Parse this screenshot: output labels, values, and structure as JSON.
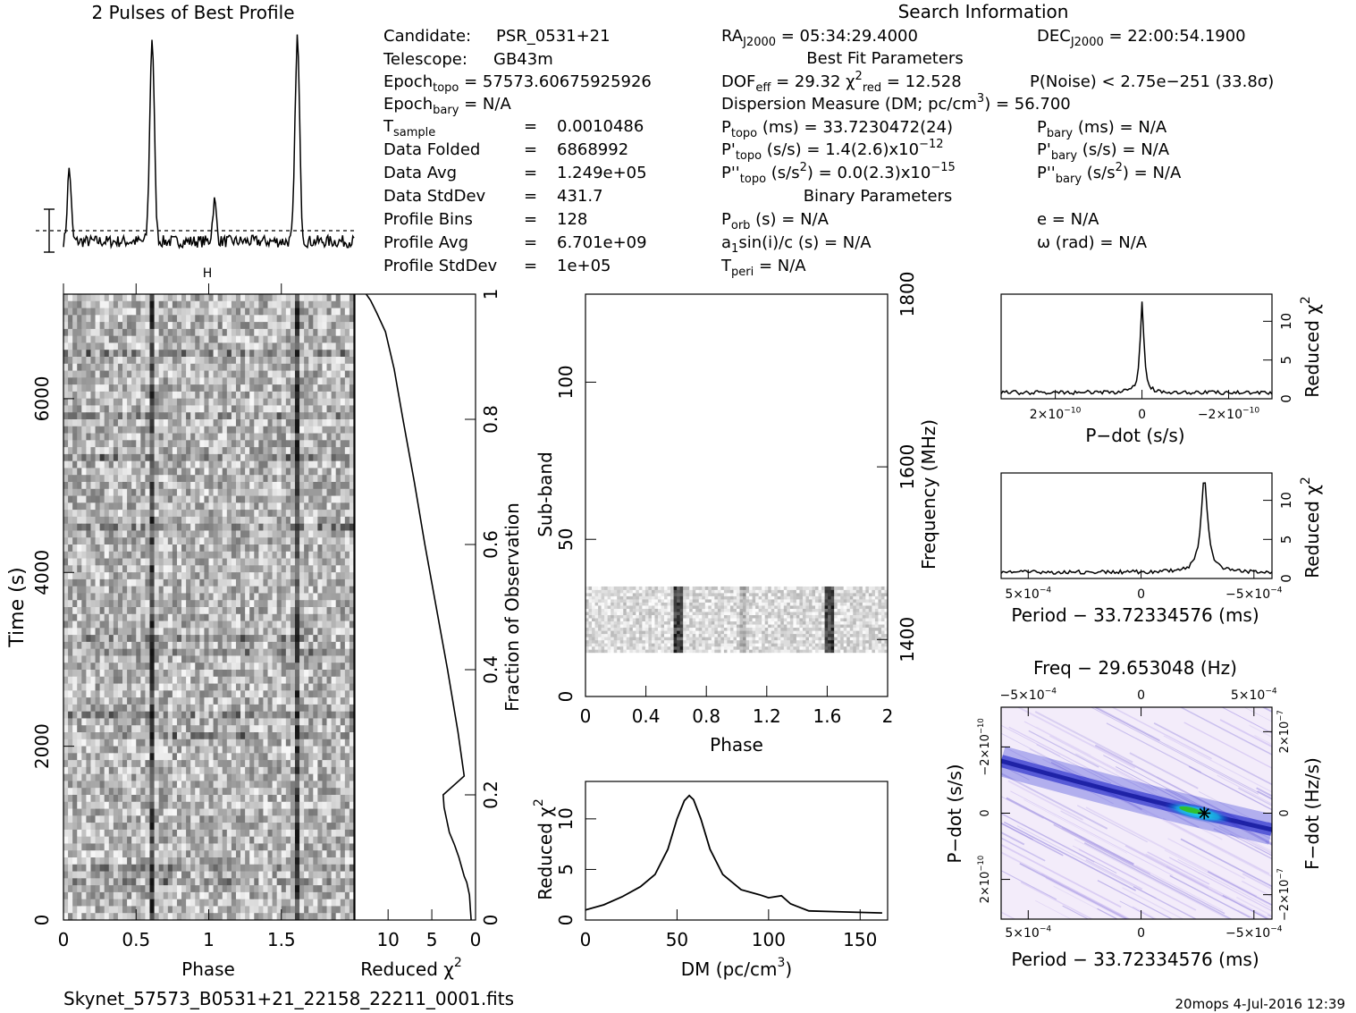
{
  "footer": {
    "filename": "Skynet_57573_B0531+21_22158_22211_0001.fits",
    "credit": "20mops",
    "timestamp": "4-Jul-2016 12:39"
  },
  "profile": {
    "title": "2 Pulses of Best Profile"
  },
  "search_info": {
    "header": "Search Information",
    "best_fit_header": "Best Fit Parameters",
    "binary_header": "Binary Parameters",
    "candidate_label": "Candidate:",
    "candidate": "PSR_0531+21",
    "telescope_label": "Telescope:",
    "telescope": "GB43m",
    "epoch_topo": "57573.60675925926",
    "epoch_bary": "N/A",
    "t_sample": "0.0010486",
    "data_folded_label": "Data Folded",
    "data_folded": "6868992",
    "data_avg_label": "Data Avg",
    "data_avg": "1.249e+05",
    "data_stddev_label": "Data StdDev",
    "data_stddev": "431.7",
    "profile_bins_label": "Profile Bins",
    "profile_bins": "128",
    "profile_avg_label": "Profile Avg",
    "profile_avg": "6.701e+09",
    "profile_stddev_label": "Profile StdDev",
    "profile_stddev": "1e+05",
    "ra": "05:34:29.4000",
    "dec": "22:00:54.1900",
    "dof_eff": "29.32",
    "chi2_red": "12.528",
    "p_noise": "2.75e−251",
    "sigma": "33.8σ",
    "dm_text": "= 56.700",
    "p_topo": "33.7230472(24)",
    "p_bary": "N/A",
    "pd_topo": "1.4(2.6)",
    "pd_topo_exp": "−12",
    "pd_bary": "N/A",
    "pdd_topo": "0.0(2.3)",
    "pdd_topo_exp": "−15",
    "pdd_bary": "N/A",
    "p_orb": "N/A",
    "a1sini": "N/A",
    "t_peri": "N/A",
    "e": "N/A",
    "omega": "N/A"
  },
  "colors": {
    "ink": "#000000",
    "ppdot_low": "#f4eefb",
    "ppdot_mid": "#1a22c8",
    "ppdot_peak": "#22e0e0",
    "ppdot_center": "#30c030"
  },
  "chart_data": [
    {
      "id": "profile",
      "type": "line",
      "title": "2 Pulses of Best Profile",
      "x_range": [
        0,
        2
      ],
      "peaks": [
        {
          "phase": 0.04,
          "height": 0.36
        },
        {
          "phase": 0.61,
          "height": 1.0
        },
        {
          "phase": 1.04,
          "height": 0.2
        },
        {
          "phase": 1.61,
          "height": 1.0
        }
      ]
    },
    {
      "id": "time_phase",
      "type": "heatmap",
      "xlabel": "Phase",
      "ylabel": "Time (s)",
      "x_ticks": [
        "0",
        "0.5",
        "1",
        "1.5"
      ],
      "x_tick_values": [
        0,
        0.5,
        1,
        1.5
      ],
      "x_range": [
        0,
        2
      ],
      "y_ticks": [
        "0",
        "2000",
        "4000",
        "6000"
      ],
      "y_tick_values": [
        0,
        2000,
        4000,
        6000
      ],
      "y_range": [
        0,
        7203
      ],
      "pulse_phases": [
        0.61,
        1.61
      ]
    },
    {
      "id": "time_chi2",
      "type": "line",
      "xlabel": "Reduced χ",
      "x_ticks": [
        "10",
        "5",
        "0"
      ],
      "x_tick_values": [
        10,
        5,
        0
      ],
      "x_range": [
        13.8,
        0
      ],
      "ylabel": "Fraction of Observation",
      "y_ticks": [
        "0",
        "0.2",
        "0.4",
        "0.6",
        "0.8",
        "1"
      ],
      "y_tick_values": [
        0,
        0.2,
        0.4,
        0.6,
        0.8,
        1.0
      ],
      "points": [
        [
          0.5,
          0
        ],
        [
          0.6,
          0.02
        ],
        [
          0.7,
          0.04
        ],
        [
          1.0,
          0.06
        ],
        [
          1.3,
          0.07
        ],
        [
          1.9,
          0.1
        ],
        [
          2.4,
          0.12
        ],
        [
          3.0,
          0.14
        ],
        [
          3.6,
          0.18
        ],
        [
          3.7,
          0.2
        ],
        [
          1.3,
          0.23
        ],
        [
          2.0,
          0.3
        ],
        [
          3.2,
          0.4
        ],
        [
          4.5,
          0.5
        ],
        [
          5.8,
          0.6
        ],
        [
          7.0,
          0.7
        ],
        [
          8.3,
          0.8
        ],
        [
          9.3,
          0.88
        ],
        [
          10.3,
          0.94
        ],
        [
          11.3,
          0.97
        ],
        [
          12.0,
          0.99
        ],
        [
          12.5,
          1.0
        ]
      ]
    },
    {
      "id": "subband_phase",
      "type": "heatmap",
      "xlabel": "Phase",
      "ylabel": "Sub-band",
      "y2label": "Frequency (MHz)",
      "x_ticks": [
        "0",
        "0.4",
        "0.8",
        "1.2",
        "1.6",
        "2"
      ],
      "x_tick_values": [
        0,
        0.4,
        0.8,
        1.2,
        1.6,
        2.0
      ],
      "x_range": [
        0,
        2
      ],
      "y_ticks": [
        "0",
        "50",
        "100"
      ],
      "y_tick_values": [
        0,
        50,
        100
      ],
      "y_range": [
        0,
        128
      ],
      "y2_ticks": [
        "1400",
        "1600",
        "1800"
      ],
      "y2_tick_values": [
        1400,
        1600,
        1800
      ],
      "y2_range": [
        1334,
        1800
      ],
      "active_subbands": [
        14,
        35
      ],
      "pulse_phases": [
        0.61,
        1.04,
        1.61
      ]
    },
    {
      "id": "dm_curve",
      "type": "line",
      "xlabel": "DM (pc/cm",
      "xlabel_unit": "3",
      "ylabel": "Reduced χ",
      "x_ticks": [
        "0",
        "50",
        "100",
        "150"
      ],
      "x_tick_values": [
        0,
        50,
        100,
        150
      ],
      "x_range": [
        0,
        165
      ],
      "y_ticks": [
        "0",
        "5",
        "10"
      ],
      "y_tick_values": [
        0,
        5,
        10
      ],
      "y_range": [
        0,
        13.7
      ],
      "points": [
        [
          0,
          1.0
        ],
        [
          10,
          1.5
        ],
        [
          20,
          2.3
        ],
        [
          30,
          3.3
        ],
        [
          38,
          4.5
        ],
        [
          45,
          7.0
        ],
        [
          50,
          10.0
        ],
        [
          54,
          11.8
        ],
        [
          56.7,
          12.3
        ],
        [
          59,
          11.9
        ],
        [
          63,
          10.0
        ],
        [
          68,
          7.0
        ],
        [
          75,
          4.5
        ],
        [
          85,
          3.0
        ],
        [
          95,
          2.5
        ],
        [
          100,
          2.2
        ],
        [
          107,
          2.4
        ],
        [
          112,
          1.6
        ],
        [
          122,
          0.9
        ],
        [
          140,
          0.8
        ],
        [
          162,
          0.7
        ]
      ]
    },
    {
      "id": "pdot_curve",
      "type": "line",
      "xlabel": "P−dot (s/s)",
      "ylabel": "Reduced χ",
      "x_ticks": [
        "2×10",
        "0",
        "−2×10"
      ],
      "x_tick_values": [
        2e-10,
        0,
        -2e-10
      ],
      "x_tick_exp": "−10",
      "x_range": [
        3.25e-10,
        -3e-10
      ],
      "y_ticks": [
        "0",
        "5",
        "10"
      ],
      "y_tick_values": [
        0,
        5,
        10
      ],
      "y_range": [
        0,
        13.5
      ],
      "peak": {
        "x": 0,
        "y": 12.5
      }
    },
    {
      "id": "period_curve",
      "type": "line",
      "xlabel": "Period − 33.72334576 (ms)",
      "ylabel": "Reduced χ",
      "x_ticks": [
        "5×10",
        "0",
        "−5×10"
      ],
      "x_tick_values": [
        0.0005,
        0,
        -0.0005
      ],
      "x_tick_exp": "−4",
      "x_range": [
        0.00062,
        -0.00058
      ],
      "y_ticks": [
        "0",
        "5",
        "10"
      ],
      "y_tick_values": [
        0,
        5,
        10
      ],
      "y_range": [
        0,
        13.5
      ],
      "peak": {
        "x": -0.00028,
        "y": 12.6
      }
    },
    {
      "id": "ppdot_map",
      "type": "heatmap",
      "title": "Freq − 29.653048 (Hz)",
      "xlabel": "Period − 33.72334576 (ms)",
      "ylabel": "P−dot (s/s)",
      "y2label": "F−dot (Hz/s)",
      "x_ticks": [
        "5×10",
        "0",
        "−5×10"
      ],
      "x_tick_values": [
        0.0005,
        0,
        -0.0005
      ],
      "x_tick_exp": "−4",
      "top_ticks": [
        "−5×10",
        "0",
        "5×10"
      ],
      "top_tick_values": [
        -0.0005,
        0,
        0.0005
      ],
      "y_ticks": [
        "−2×10",
        "0",
        "2×10"
      ],
      "y_tick_values": [
        -2e-10,
        0,
        2e-10
      ],
      "y_tick_exp": "−10",
      "y2_ticks": [
        "2×10",
        "0",
        "−2×10"
      ],
      "y2_tick_values": [
        2e-07,
        0,
        -2e-07
      ],
      "y2_tick_exp": "−7",
      "x_range": [
        0.00062,
        -0.00058
      ],
      "y_range": [
        -3.2e-10,
        3.2e-10
      ],
      "best": {
        "period": -0.00028,
        "pdot": 0
      }
    }
  ]
}
